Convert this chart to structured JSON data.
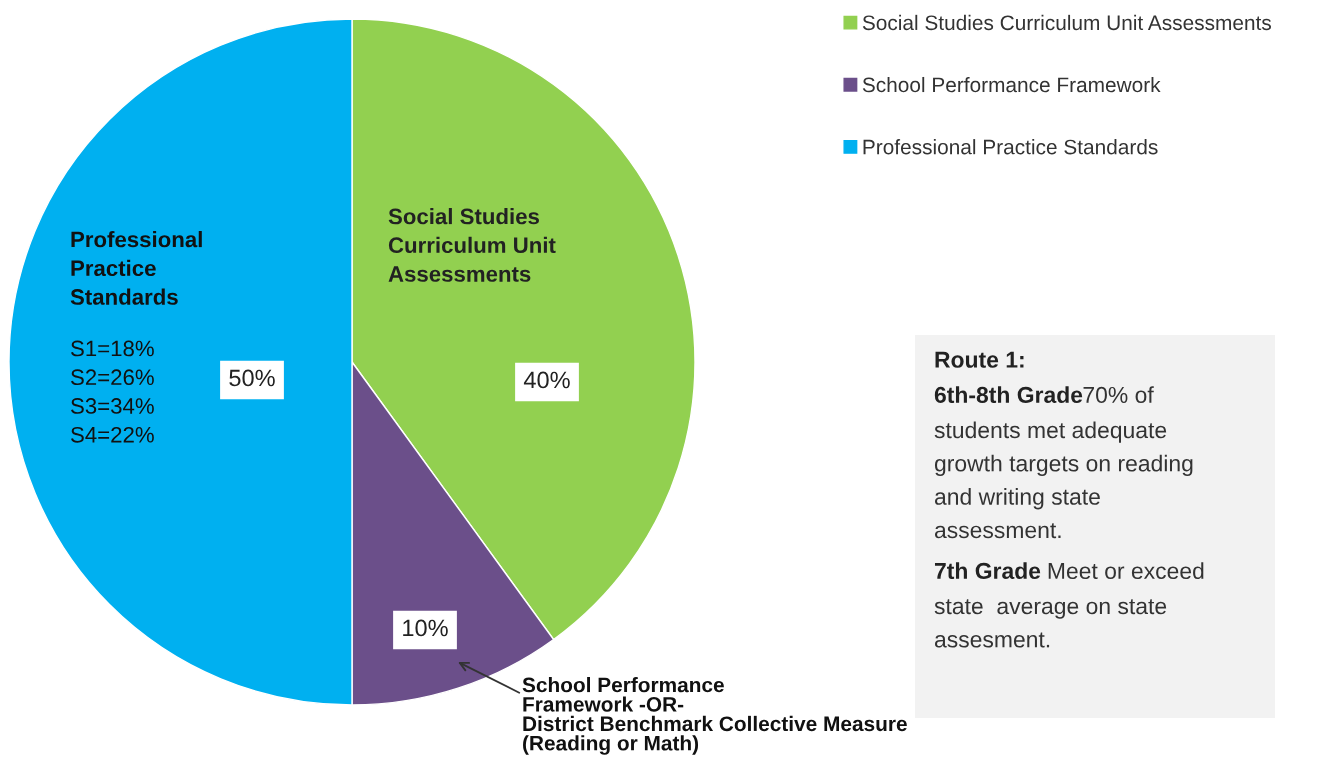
{
  "chart_data": {
    "type": "pie",
    "categories": [
      "Social Studies Curriculum Unit Assessments",
      "School Performance Framework",
      "Professional Practice Standards"
    ],
    "values": [
      40,
      10,
      50
    ],
    "colors": [
      "#92d050",
      "#6b4f8a",
      "#00b0f0"
    ],
    "value_labels": [
      "40%",
      "10%",
      "50%"
    ],
    "legend": "top right",
    "annotations": [
      "Social Studies\nCurriculum Unit\nAssessments",
      "Professional\nPractice\nStandards",
      "S1=18%\nS2=26%\nS3=34%\nS4=22%",
      "School Performance\nFramework -OR-\nDistrict Benchmark Collective Measure\n(Reading or Math)",
      "Route 1:",
      "6th-8th Grade",
      "70% of",
      "students met adequate\ngrowth targets on reading\nand writing state\nassessment.",
      "7th Grade",
      "Meet or exceed",
      "state  average on state\nassesment."
    ]
  }
}
